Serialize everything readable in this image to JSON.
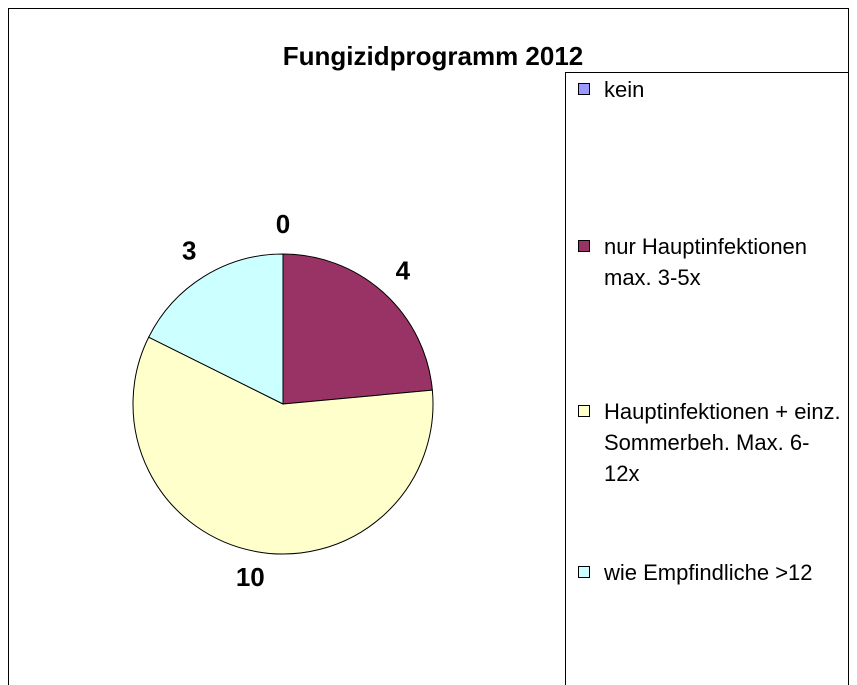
{
  "chart_data": {
    "type": "pie",
    "title": "Fungizidprogramm 2012",
    "categories": [
      "kein",
      "nur Hauptinfektionen max. 3-5x",
      "Hauptinfektionen + einz. Sommerbeh. Max. 6-12x",
      "wie Empfindliche >12"
    ],
    "values": [
      0,
      4,
      10,
      3
    ],
    "colors": [
      "#9999ff",
      "#993366",
      "#ffffcc",
      "#ccffff"
    ],
    "legend": "right"
  }
}
